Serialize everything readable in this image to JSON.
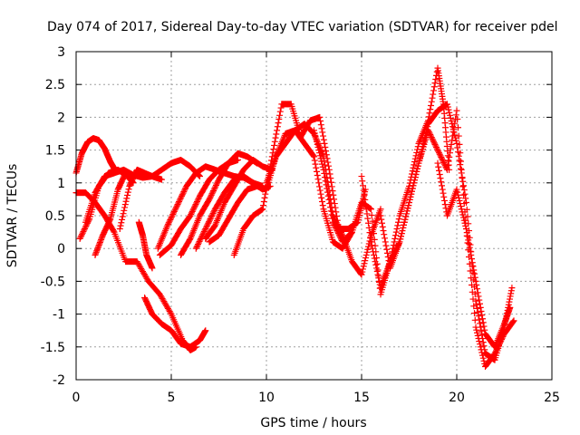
{
  "chart_data": {
    "type": "scatter",
    "title": "Day 074 of 2017, Sidereal Day-to-day VTEC variation (SDTVAR) for receiver pdel",
    "xlabel": "GPS time / hours",
    "ylabel": "SDTVAR / TECUs",
    "xlim": [
      0,
      25
    ],
    "ylim": [
      -2,
      3
    ],
    "xticks": [
      "0",
      "5",
      "10",
      "15",
      "20",
      "25"
    ],
    "yticks": [
      "-2",
      "-1.5",
      "-1",
      "-0.5",
      "0",
      "0.5",
      "1",
      "1.5",
      "2",
      "2.5",
      "3"
    ],
    "grid": true,
    "legend": "none",
    "marker": "plus",
    "color": "#ff0000",
    "series": [
      {
        "x": [
          0.0,
          0.3,
          0.6,
          0.9,
          1.2,
          1.5,
          1.8,
          2.0
        ],
        "y": [
          1.15,
          1.45,
          1.62,
          1.68,
          1.65,
          1.52,
          1.32,
          1.22
        ]
      },
      {
        "x": [
          0.0,
          0.5,
          1.0,
          1.5,
          2.0,
          2.6,
          3.2,
          3.8,
          4.4,
          5.0,
          5.6,
          6.0,
          6.3
        ],
        "y": [
          0.85,
          0.85,
          0.7,
          0.5,
          0.25,
          -0.2,
          -0.2,
          -0.5,
          -0.7,
          -1.0,
          -1.4,
          -1.55,
          -1.5
        ]
      },
      {
        "x": [
          0.2,
          0.7,
          1.2,
          1.7,
          2.2,
          2.7,
          3.0
        ],
        "y": [
          0.15,
          0.45,
          0.95,
          1.15,
          1.2,
          1.1,
          1.0
        ]
      },
      {
        "x": [
          0.5,
          1.0,
          1.5,
          2.0,
          2.5,
          3.0,
          3.5,
          4.0,
          4.5,
          5.0,
          5.5,
          6.0,
          6.5
        ],
        "y": [
          0.4,
          0.85,
          1.1,
          1.15,
          1.2,
          1.12,
          1.08,
          1.1,
          1.2,
          1.3,
          1.35,
          1.25,
          1.1
        ]
      },
      {
        "x": [
          1.0,
          1.4,
          1.8,
          2.2,
          2.6,
          3.0
        ],
        "y": [
          -0.1,
          0.2,
          0.45,
          0.9,
          1.15,
          1.1
        ]
      },
      {
        "x": [
          2.3,
          2.8,
          3.2,
          3.6,
          4.0,
          4.5
        ],
        "y": [
          0.3,
          0.95,
          1.2,
          1.15,
          1.1,
          1.05
        ]
      },
      {
        "x": [
          3.3,
          3.5,
          3.7,
          4.0
        ],
        "y": [
          0.4,
          0.2,
          -0.1,
          -0.3
        ]
      },
      {
        "x": [
          3.6,
          4.0,
          4.5,
          5.0,
          5.5,
          6.0,
          6.5,
          6.8
        ],
        "y": [
          -0.75,
          -1.0,
          -1.15,
          -1.25,
          -1.45,
          -1.5,
          -1.4,
          -1.25
        ]
      },
      {
        "x": [
          4.4,
          5.0,
          5.5,
          6.0,
          6.5,
          7.0,
          7.5,
          8.0,
          8.5
        ],
        "y": [
          -0.1,
          0.05,
          0.3,
          0.5,
          0.8,
          1.05,
          1.2,
          1.3,
          1.35
        ]
      },
      {
        "x": [
          4.3,
          4.8,
          5.3,
          5.8,
          6.3,
          6.8,
          7.3,
          7.8,
          8.3,
          8.8,
          9.3,
          9.8
        ],
        "y": [
          0.0,
          0.35,
          0.65,
          0.95,
          1.15,
          1.25,
          1.2,
          1.15,
          1.1,
          1.08,
          1.0,
          0.95
        ]
      },
      {
        "x": [
          5.5,
          6.0,
          6.5,
          7.0,
          7.5,
          8.0,
          8.5,
          9.0,
          9.5
        ],
        "y": [
          -0.1,
          0.15,
          0.5,
          0.75,
          1.05,
          1.3,
          1.45,
          1.4,
          1.3
        ]
      },
      {
        "x": [
          6.3,
          6.8,
          7.3,
          7.8,
          8.3,
          8.8,
          9.3,
          9.8,
          10.2
        ],
        "y": [
          0.0,
          0.3,
          0.6,
          0.85,
          1.05,
          1.1,
          1.0,
          0.9,
          0.95
        ]
      },
      {
        "x": [
          6.8,
          7.3,
          7.8,
          8.3,
          8.8,
          9.3,
          9.8,
          10.3
        ],
        "y": [
          0.15,
          0.35,
          0.7,
          0.95,
          1.2,
          1.35,
          1.25,
          1.2
        ]
      },
      {
        "x": [
          7.0,
          7.5,
          8.0,
          8.5,
          9.0,
          9.5,
          10.0,
          10.5,
          11.0,
          11.5,
          12.0,
          12.5,
          13.0,
          13.5,
          14.0,
          14.5
        ],
        "y": [
          0.1,
          0.2,
          0.45,
          0.7,
          0.9,
          0.95,
          0.9,
          1.4,
          1.75,
          1.8,
          1.6,
          1.4,
          0.6,
          0.1,
          0.0,
          0.25
        ]
      },
      {
        "x": [
          8.3,
          8.8,
          9.3,
          9.8,
          10.3,
          10.8,
          11.3,
          11.8,
          12.3,
          12.8,
          13.3,
          13.8,
          14.3,
          14.8,
          15.2
        ],
        "y": [
          -0.1,
          0.3,
          0.5,
          0.6,
          1.4,
          2.2,
          2.2,
          1.7,
          1.95,
          2.0,
          1.2,
          0.3,
          0.3,
          0.4,
          0.9
        ]
      },
      {
        "x": [
          10.0,
          10.5,
          11.0,
          11.5,
          12.0,
          12.5,
          13.0,
          13.5,
          14.0,
          14.5,
          15.0,
          15.5,
          16.0
        ],
        "y": [
          1.0,
          1.4,
          1.6,
          1.8,
          1.9,
          1.75,
          1.4,
          0.5,
          0.2,
          -0.2,
          -0.4,
          0.2,
          0.6
        ]
      },
      {
        "x": [
          12.5,
          13.0,
          13.5,
          14.0,
          14.5,
          15.0,
          15.5,
          16.0,
          16.5,
          17.0,
          17.5,
          18.0,
          18.5,
          19.0,
          19.5,
          20.0,
          20.5,
          21.0,
          21.5,
          22.0,
          22.5,
          22.9
        ],
        "y": [
          1.8,
          1.2,
          0.4,
          0.1,
          0.25,
          0.7,
          0.6,
          -0.7,
          -0.2,
          0.1,
          0.7,
          1.3,
          1.9,
          2.1,
          2.2,
          1.6,
          0.7,
          -0.8,
          -1.6,
          -1.7,
          -1.2,
          -0.6
        ]
      },
      {
        "x": [
          15.0,
          15.5,
          16.0,
          16.5,
          17.0,
          17.5,
          18.0,
          18.5,
          19.0,
          19.3,
          19.6
        ],
        "y": [
          1.1,
          0.1,
          -0.6,
          -0.2,
          0.5,
          0.95,
          1.6,
          1.95,
          2.75,
          2.2,
          1.2
        ]
      },
      {
        "x": [
          16.0,
          16.5,
          17.0,
          17.5,
          18.0,
          18.5,
          19.0,
          19.5,
          20.0,
          20.5,
          21.0,
          21.5,
          22.0,
          22.5,
          23.0
        ],
        "y": [
          0.5,
          -0.3,
          0.1,
          0.7,
          1.3,
          1.8,
          1.5,
          1.2,
          2.1,
          0.3,
          -1.2,
          -1.8,
          -1.6,
          -1.3,
          -1.1
        ]
      },
      {
        "x": [
          19.0,
          19.5,
          20.0,
          20.5,
          21.0,
          21.5,
          22.0,
          22.5,
          22.8
        ],
        "y": [
          1.3,
          0.5,
          0.9,
          0.3,
          -0.5,
          -1.3,
          -1.5,
          -1.15,
          -0.9
        ]
      }
    ]
  }
}
